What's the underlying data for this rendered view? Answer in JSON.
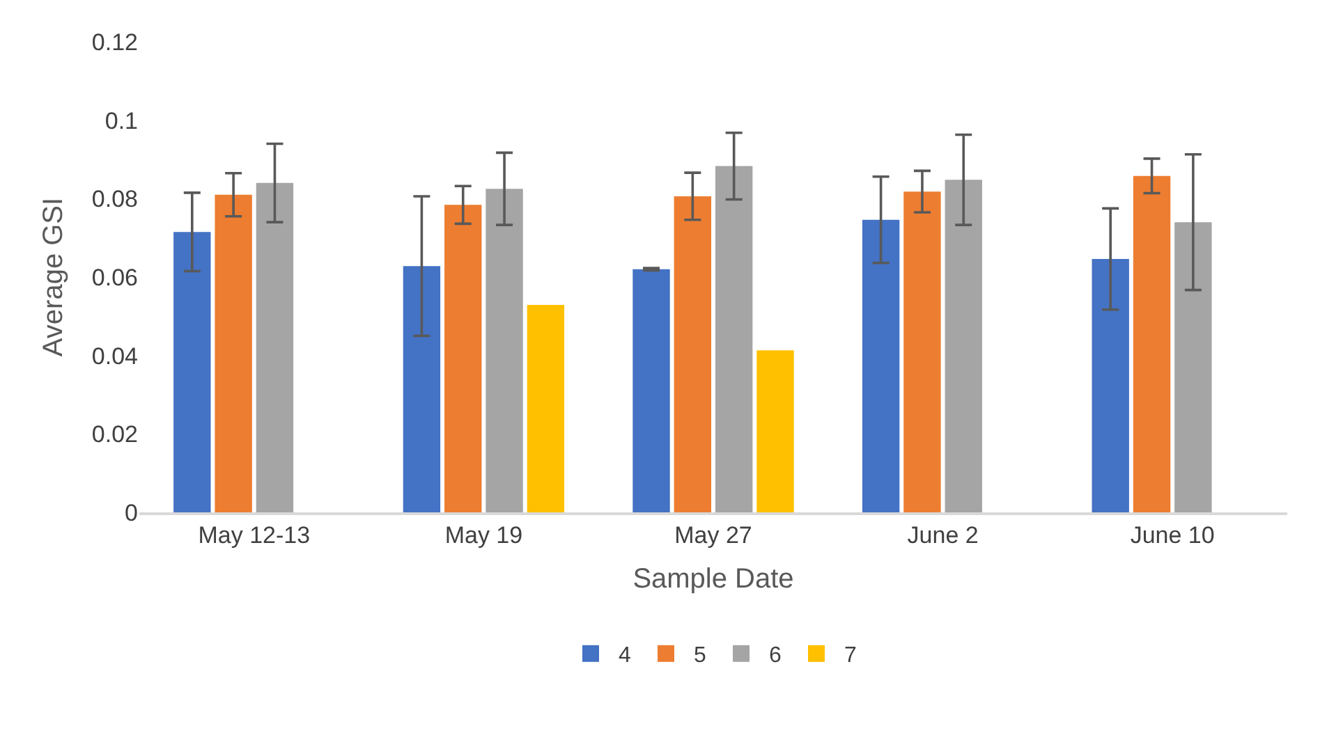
{
  "chart_data": {
    "type": "bar",
    "xlabel": "Sample Date",
    "ylabel": "Average GSI",
    "categories": [
      "May 12-13",
      "May 19",
      "May 27",
      "June 2",
      "June 10"
    ],
    "series": [
      {
        "name": "4",
        "color": "#4472c4",
        "values": [
          0.0715,
          0.0628,
          0.062,
          0.0746,
          0.0646
        ],
        "errors": [
          0.01,
          0.0178,
          0.0003,
          0.011,
          0.0129
        ]
      },
      {
        "name": "5",
        "color": "#ed7d31",
        "values": [
          0.081,
          0.0784,
          0.0806,
          0.0818,
          0.0858
        ],
        "errors": [
          0.0055,
          0.0048,
          0.006,
          0.0053,
          0.0044
        ]
      },
      {
        "name": "6",
        "color": "#a5a5a5",
        "values": [
          0.084,
          0.0825,
          0.0883,
          0.0848,
          0.074
        ],
        "errors": [
          0.01,
          0.0092,
          0.0085,
          0.0115,
          0.0173
        ]
      },
      {
        "name": "7",
        "color": "#ffc000",
        "values": [
          null,
          0.0529,
          0.0413,
          null,
          null
        ]
      }
    ],
    "ylim": [
      0,
      0.12
    ],
    "yticks": [
      0,
      {
        "value": 0.02,
        "label": "0.02"
      },
      {
        "value": 0.04,
        "label": "0.04"
      },
      {
        "value": 0.06,
        "label": "0.06"
      },
      {
        "value": 0.08,
        "label": "0.08"
      },
      {
        "value": 0.1,
        "label": "0.1"
      },
      {
        "value": 0.12,
        "label": "0.12"
      }
    ],
    "grid": false,
    "legend": "bottom"
  }
}
